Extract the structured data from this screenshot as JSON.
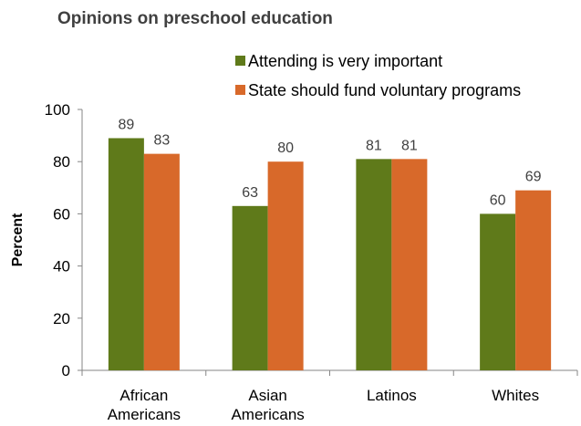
{
  "chart_data": {
    "type": "bar",
    "title": "Opinions on preschool education",
    "ylabel": "Percent",
    "xlabel": "",
    "ylim": [
      0,
      100
    ],
    "yticks": [
      0,
      20,
      40,
      60,
      80,
      100
    ],
    "grid": false,
    "legend_position": "top-right",
    "categories": [
      [
        "African",
        "Americans"
      ],
      [
        "Asian",
        "Americans"
      ],
      [
        "Latinos"
      ],
      [
        "Whites"
      ]
    ],
    "series": [
      {
        "name": "Attending is very important",
        "color": "#5f7a1a",
        "values": [
          89,
          63,
          81,
          60
        ]
      },
      {
        "name": "State should fund voluntary programs",
        "color": "#d8692a",
        "values": [
          83,
          80,
          81,
          69
        ]
      }
    ]
  }
}
